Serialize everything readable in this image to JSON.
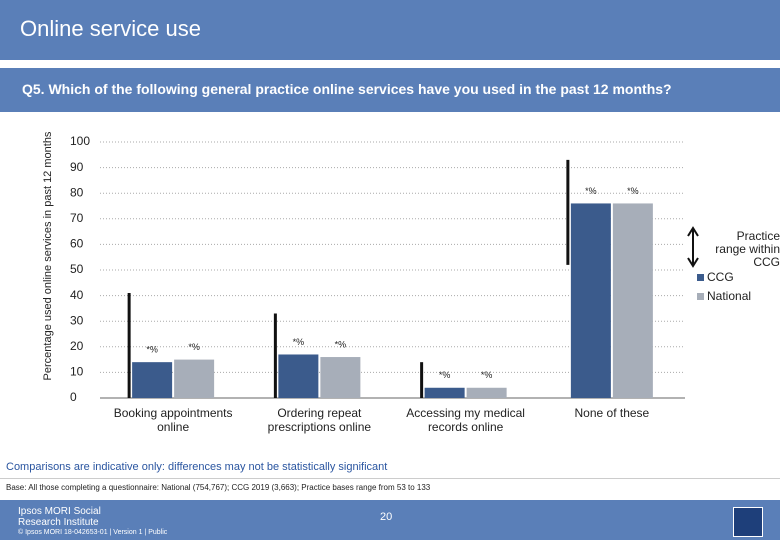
{
  "header": {
    "title": "Online service use"
  },
  "chart_data": {
    "type": "bar",
    "title": "Q5. Which of the following general practice online services have you used in the past 12 months?",
    "y_label": "Percentage used online services in past 12 months",
    "categories": [
      "Booking appointments online",
      "Ordering repeat prescriptions online",
      "Accessing my medical records online",
      "None of these"
    ],
    "series": [
      {
        "name": "CCG",
        "color": "#3b5b8c",
        "values": [
          14,
          17,
          4,
          76
        ],
        "value_labels": [
          "*%",
          "*%",
          "*%",
          "*%"
        ]
      },
      {
        "name": "National",
        "color": "#a7aeb9",
        "values": [
          15,
          16,
          4,
          76
        ],
        "value_labels": [
          "*%",
          "*%",
          "*%",
          "*%"
        ]
      }
    ],
    "range": {
      "name": "Practice range within CCG",
      "color": "#111111",
      "low": [
        0,
        0,
        0,
        52
      ],
      "high": [
        41,
        33,
        14,
        93
      ]
    },
    "ylim": [
      0,
      100
    ],
    "yticks": [
      0,
      10,
      20,
      30,
      40,
      50,
      60,
      70,
      80,
      90,
      100
    ],
    "grid": true,
    "legend": "right"
  },
  "notes": {
    "comparison": "Comparisons are indicative only: differences may not be statistically significant",
    "base": "Base: All those completing a questionnaire: National (754,767); CCG 2019 (3,663); Practice bases range from 53 to 133"
  },
  "footer": {
    "logo": "Ipsos MORI Social Research Institute",
    "page": "20",
    "copyright": "© Ipsos MORI    18-042653-01 | Version 1 | Public"
  }
}
